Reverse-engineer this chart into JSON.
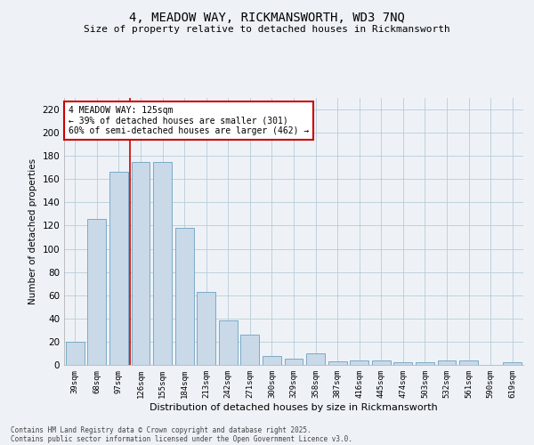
{
  "title": "4, MEADOW WAY, RICKMANSWORTH, WD3 7NQ",
  "subtitle": "Size of property relative to detached houses in Rickmansworth",
  "xlabel": "Distribution of detached houses by size in Rickmansworth",
  "ylabel": "Number of detached properties",
  "categories": [
    "39sqm",
    "68sqm",
    "97sqm",
    "126sqm",
    "155sqm",
    "184sqm",
    "213sqm",
    "242sqm",
    "271sqm",
    "300sqm",
    "329sqm",
    "358sqm",
    "387sqm",
    "416sqm",
    "445sqm",
    "474sqm",
    "503sqm",
    "532sqm",
    "561sqm",
    "590sqm",
    "619sqm"
  ],
  "values": [
    20,
    126,
    166,
    175,
    175,
    118,
    63,
    38,
    26,
    8,
    5,
    10,
    3,
    4,
    4,
    2,
    2,
    4,
    4,
    0,
    2
  ],
  "bar_color": "#c9d9e8",
  "bar_edge_color": "#7aaac8",
  "grid_color": "#b8ccd8",
  "background_color": "#eef2f7",
  "vline_x": 2.5,
  "vline_color": "#cc0000",
  "annotation_text": "4 MEADOW WAY: 125sqm\n← 39% of detached houses are smaller (301)\n60% of semi-detached houses are larger (462) →",
  "annotation_box_color": "#ffffff",
  "annotation_box_edge": "#cc0000",
  "ylim": [
    0,
    230
  ],
  "yticks": [
    0,
    20,
    40,
    60,
    80,
    100,
    120,
    140,
    160,
    180,
    200,
    220
  ],
  "footer1": "Contains HM Land Registry data © Crown copyright and database right 2025.",
  "footer2": "Contains public sector information licensed under the Open Government Licence v3.0."
}
